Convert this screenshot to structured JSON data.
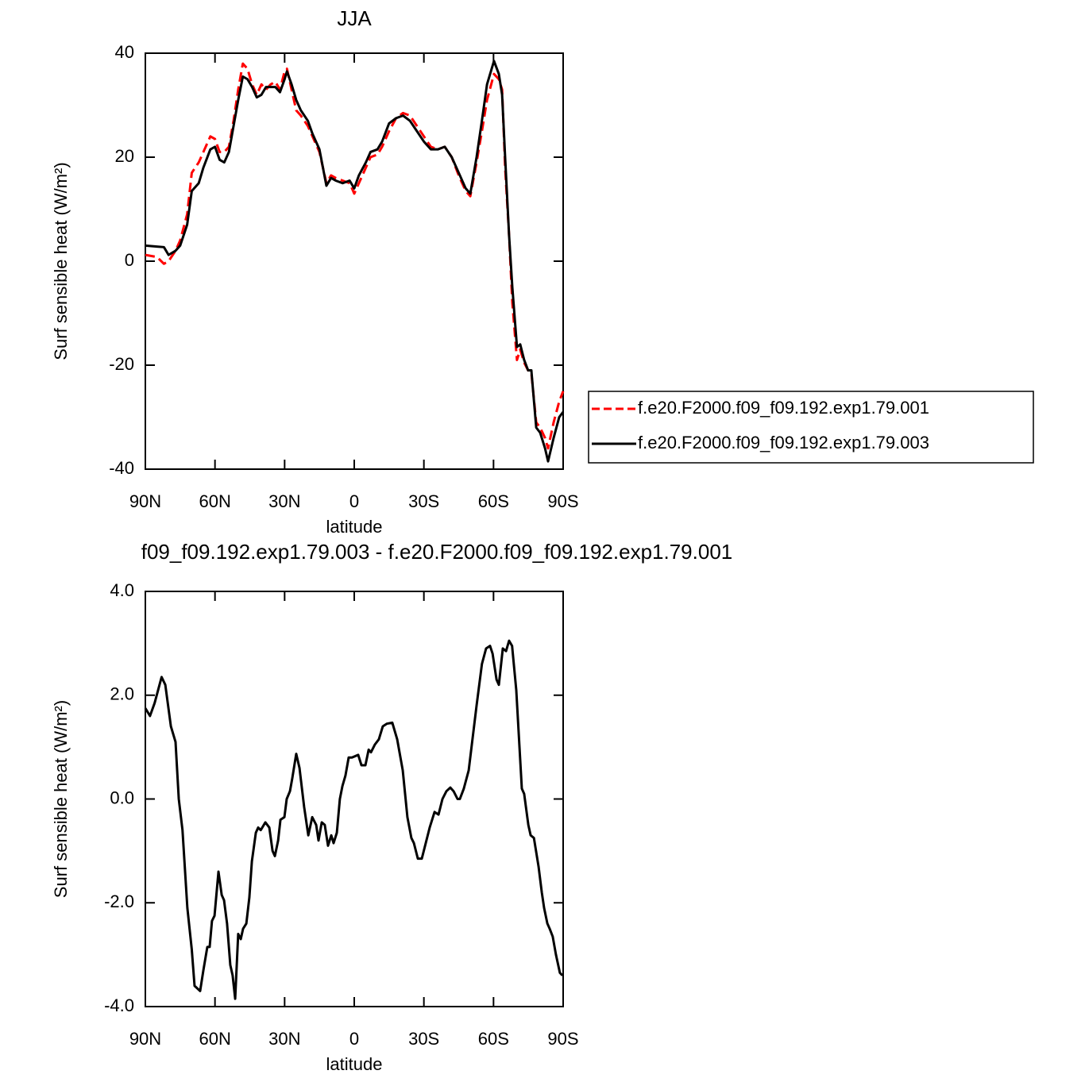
{
  "chart_data": [
    {
      "type": "line",
      "title": "JJA",
      "xlabel": "latitude",
      "ylabel": "Surf sensible heat (W/m²)",
      "x": [
        90,
        85,
        82,
        80,
        77,
        75,
        72,
        70,
        67,
        65,
        62,
        60,
        58,
        56,
        54,
        52,
        50,
        48,
        46,
        44,
        42,
        40,
        38,
        36,
        34,
        32,
        30,
        29,
        27,
        25,
        23,
        20,
        18,
        15,
        12,
        10,
        8,
        5,
        2,
        0,
        -2,
        -5,
        -7,
        -10,
        -12,
        -15,
        -18,
        -21,
        -24,
        -27,
        -30,
        -33,
        -36,
        -39,
        -42,
        -45,
        -48,
        -50,
        -52.7,
        -55,
        -57.2,
        -60.2,
        -62.3,
        -63.7,
        -65,
        -66.7,
        -68.1,
        -70.1,
        -71.5,
        -73.2,
        -74.9,
        -76.3,
        -78.4,
        -80.1,
        -82.2,
        -83.5,
        -85.9,
        -88.3,
        -90
      ],
      "series": [
        {
          "name": "f.e20.F2000.f09_f09.192.exp1.79.001",
          "color": "#ff0000",
          "line_style": "dashed",
          "values": [
            1.2,
            0.8,
            -0.5,
            0,
            2,
            4,
            9,
            17,
            19,
            21,
            24,
            23.5,
            21,
            21,
            22,
            27,
            33,
            38,
            37,
            34,
            32,
            34,
            33,
            34,
            34.5,
            33,
            36.5,
            37,
            33,
            29,
            28,
            26,
            24,
            21,
            15,
            16.5,
            16,
            15.5,
            15,
            13,
            15,
            18,
            20,
            20.5,
            22,
            25,
            27.5,
            28.5,
            28,
            26,
            24,
            22,
            21.5,
            22,
            20,
            16.5,
            13.5,
            12.5,
            19,
            25,
            31,
            36,
            35,
            33,
            18,
            5,
            -8,
            -19,
            -17,
            -19.5,
            -21,
            -21.5,
            -31,
            -32,
            -34,
            -36,
            -31,
            -27,
            -25
          ]
        },
        {
          "name": "f.e20.F2000.f09_f09.192.exp1.79.003",
          "color": "#000000",
          "line_style": "solid",
          "values": [
            3,
            2.8,
            2.7,
            1.2,
            2,
            3,
            7,
            13.5,
            15,
            18,
            21.5,
            22,
            19.5,
            19,
            21,
            26,
            31,
            35.5,
            35,
            33.5,
            31.5,
            32,
            33.5,
            33.5,
            33.5,
            32.5,
            35,
            36.5,
            34,
            31,
            29,
            27,
            24.5,
            21.5,
            14.5,
            16,
            15.5,
            15,
            15.5,
            14,
            16.5,
            19,
            21,
            21.5,
            23,
            26.5,
            27.5,
            28,
            27,
            25,
            23,
            21.5,
            21.5,
            22,
            20,
            17,
            14,
            13,
            20,
            27,
            34,
            38.5,
            36,
            32,
            20,
            5,
            -5,
            -16.5,
            -16,
            -19,
            -21,
            -21,
            -32,
            -33,
            -36,
            -38.5,
            -34,
            -30,
            -29
          ]
        }
      ],
      "xlim": [
        90,
        -90
      ],
      "xticks": [
        {
          "value": 90,
          "label": "90N"
        },
        {
          "value": 60,
          "label": "60N"
        },
        {
          "value": 30,
          "label": "30N"
        },
        0,
        {
          "value": -30,
          "label": "30S"
        },
        {
          "value": -60,
          "label": "60S"
        },
        {
          "value": -90,
          "label": "90S"
        }
      ],
      "ylim": [
        -40,
        40
      ],
      "yticks": [
        -40,
        -20,
        0,
        20,
        40
      ],
      "legend": "right"
    },
    {
      "type": "line",
      "title": "f09_f09.192.exp1.79.003 - f.e20.F2000.f09_f09.192.exp1.79.001",
      "xlabel": "latitude",
      "ylabel": "Surf sensible heat (W/m²)",
      "x": [
        90,
        88,
        86,
        83,
        81.4,
        79,
        77,
        75.6,
        74,
        71.9,
        70,
        68.8,
        66.4,
        65,
        63.3,
        62.3,
        61.3,
        60.2,
        58.5,
        57.1,
        56.1,
        54.8,
        53.4,
        52.4,
        51.3,
        50,
        48.9,
        47.9,
        46.5,
        45.2,
        44.1,
        42.4,
        41.4,
        40.3,
        38.3,
        36.6,
        35.2,
        34.2,
        32.8,
        31.8,
        30.1,
        29.1,
        27.7,
        26.7,
        25,
        23.6,
        21.6,
        19.8,
        18.1,
        16.4,
        15.4,
        14,
        12.7,
        11.3,
        9.9,
        8.9,
        7.5,
        6.2,
        5.1,
        3.8,
        2.4,
        1,
        -1.7,
        -3.1,
        -4.8,
        -6.2,
        -7.2,
        -8.9,
        -10.6,
        -12.3,
        -14,
        -16.4,
        -18.5,
        -20.9,
        -22.9,
        -24.6,
        -25.7,
        -27.4,
        -29.1,
        -30.8,
        -32.5,
        -34.6,
        -36.3,
        -38,
        -39.7,
        -41.4,
        -42.8,
        -44.5,
        -45.5,
        -47.2,
        -49.3,
        -52.7,
        -55,
        -56.8,
        -58.5,
        -59.6,
        -61.3,
        -62.3,
        -64,
        -65.4,
        -66.7,
        -68,
        -69.8,
        -72.2,
        -73.2,
        -75,
        -76,
        -77.4,
        -79.4,
        -80.8,
        -81.8,
        -83.2,
        -84.2,
        -85.5,
        -86.9,
        -88.6,
        -89.7
      ],
      "series": [
        {
          "color": "#000000",
          "line_style": "solid",
          "values": [
            1.75,
            1.6,
            1.85,
            2.35,
            2.2,
            1.4,
            1.1,
            0,
            -0.6,
            -2.1,
            -2.9,
            -3.6,
            -3.7,
            -3.3,
            -2.85,
            -2.85,
            -2.35,
            -2.25,
            -1.4,
            -1.85,
            -1.95,
            -2.4,
            -3.2,
            -3.4,
            -3.85,
            -2.6,
            -2.7,
            -2.5,
            -2.4,
            -1.9,
            -1.2,
            -0.65,
            -0.55,
            -0.6,
            -0.45,
            -0.55,
            -1,
            -1.1,
            -0.8,
            -0.4,
            -0.35,
            0,
            0.15,
            0.4,
            0.87,
            0.6,
            -0.15,
            -0.7,
            -0.35,
            -0.5,
            -0.8,
            -0.45,
            -0.5,
            -0.9,
            -0.7,
            -0.85,
            -0.65,
            0,
            0.25,
            0.45,
            0.8,
            0.8,
            0.85,
            0.65,
            0.65,
            0.95,
            0.9,
            1.05,
            1.15,
            1.4,
            1.45,
            1.47,
            1.15,
            0.55,
            -0.35,
            -0.75,
            -0.85,
            -1.15,
            -1.15,
            -0.85,
            -0.55,
            -0.25,
            -0.3,
            0,
            0.15,
            0.22,
            0.15,
            0,
            0,
            0.2,
            0.55,
            1.8,
            2.6,
            2.9,
            2.95,
            2.8,
            2.3,
            2.2,
            2.9,
            2.85,
            3.05,
            2.95,
            2.1,
            0.2,
            0.1,
            -0.5,
            -0.7,
            -0.75,
            -1.3,
            -1.8,
            -2.1,
            -2.4,
            -2.5,
            -2.65,
            -3,
            -3.35,
            -3.4
          ]
        }
      ],
      "xlim": [
        90,
        -90
      ],
      "xticks": [
        {
          "value": 90,
          "label": "90N"
        },
        {
          "value": 60,
          "label": "60N"
        },
        {
          "value": 30,
          "label": "30N"
        },
        0,
        {
          "value": -30,
          "label": "30S"
        },
        {
          "value": -60,
          "label": "60S"
        },
        {
          "value": -90,
          "label": "90S"
        }
      ],
      "ylim": [
        -4,
        4
      ],
      "yticks": [
        {
          "value": -4,
          "label": "-4.0"
        },
        {
          "value": -2,
          "label": "-2.0"
        },
        {
          "value": 0,
          "label": "0.0"
        },
        {
          "value": 2,
          "label": "2.0"
        },
        {
          "value": 4,
          "label": "4.0"
        }
      ]
    }
  ]
}
